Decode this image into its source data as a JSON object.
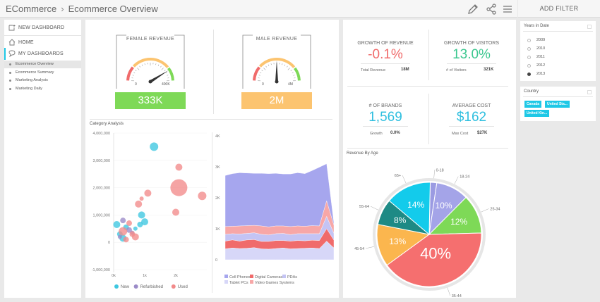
{
  "breadcrumb": {
    "root": "ECommerce",
    "separator": "›",
    "current": "Ecommerce Overview"
  },
  "toolbar": {
    "edit_icon": "pencil-icon",
    "share_icon": "share-icon",
    "menu_icon": "hamburger-menu-icon"
  },
  "filter_button": "ADD FILTER",
  "sidebar": {
    "new_dashboard": "NEW DASHBOARD",
    "home": "HOME",
    "my_dashboards": "MY DASHBOARDS",
    "dashboards": [
      "Ecommerce Overview",
      "Ecommerce Summary",
      "Marketing Analysis",
      "Marketing Daily"
    ]
  },
  "female_revenue": {
    "title": "FEMALE REVENUE",
    "min": "0",
    "max": "400K",
    "value_label": "333K",
    "value": 333,
    "scale_max": 400,
    "color": "#7ed957"
  },
  "male_revenue": {
    "title": "MALE REVENUE",
    "min": "0",
    "max": "4M",
    "value_label": "2M",
    "value": 2,
    "scale_max": 4,
    "color": "#fcc470"
  },
  "growth_revenue": {
    "title": "GROWTH OF REVENUE",
    "value": "-0.1%",
    "sub_label": "Total Revenue",
    "sub_value": "18M",
    "color": "#f06b6b"
  },
  "growth_visitors": {
    "title": "GROWTH OF VISITORS",
    "value": "13.0%",
    "sub_label": "# of Visitors",
    "sub_value": "321K",
    "color": "#3cc78f"
  },
  "brands": {
    "title": "# OF BRANDS",
    "value": "1,569",
    "sub_label": "Growth",
    "sub_value": "0.0%",
    "color": "#2fbfdf"
  },
  "avg_cost": {
    "title": "AVERAGE COST",
    "value": "$162",
    "sub_label": "Max Cost",
    "sub_value": "$27K",
    "color": "#2fbfdf"
  },
  "category_title": "Category Analysis",
  "bubble": {
    "y_ticks": [
      "4,000,000",
      "3,000,000",
      "2,000,000",
      "1,000,000",
      "0",
      "-1,000,000"
    ],
    "x_ticks": [
      "0k",
      "1k",
      "2k"
    ],
    "legend": [
      {
        "name": "New",
        "color": "#3ec7e0"
      },
      {
        "name": "Refurbished",
        "color": "#9b8bc8"
      },
      {
        "name": "Used",
        "color": "#f28a8a"
      }
    ],
    "points": [
      {
        "s": 0,
        "x": 1300,
        "y": 3500000,
        "r": 6
      },
      {
        "s": 0,
        "x": 100,
        "y": 650000,
        "r": 5
      },
      {
        "s": 0,
        "x": 900,
        "y": 1000000,
        "r": 5
      },
      {
        "s": 0,
        "x": 1000,
        "y": 750000,
        "r": 5
      },
      {
        "s": 0,
        "x": 850,
        "y": 650000,
        "r": 4
      },
      {
        "s": 0,
        "x": 400,
        "y": 550000,
        "r": 4
      },
      {
        "s": 0,
        "x": 200,
        "y": 300000,
        "r": 4
      },
      {
        "s": 0,
        "x": 300,
        "y": 150000,
        "r": 5
      },
      {
        "s": 0,
        "x": 700,
        "y": 500000,
        "r": 3
      },
      {
        "s": 1,
        "x": 300,
        "y": 800000,
        "r": 4
      },
      {
        "s": 1,
        "x": 500,
        "y": 450000,
        "r": 4
      },
      {
        "s": 1,
        "x": 200,
        "y": 200000,
        "r": 3
      },
      {
        "s": 1,
        "x": 600,
        "y": 350000,
        "r": 3
      },
      {
        "s": 2,
        "x": 2100,
        "y": 2000000,
        "r": 12
      },
      {
        "s": 2,
        "x": 2100,
        "y": 2750000,
        "r": 5
      },
      {
        "s": 2,
        "x": 1100,
        "y": 1800000,
        "r": 5
      },
      {
        "s": 2,
        "x": 800,
        "y": 1400000,
        "r": 5
      },
      {
        "s": 2,
        "x": 900,
        "y": 1600000,
        "r": 3
      },
      {
        "s": 2,
        "x": 2850,
        "y": 1700000,
        "r": 6
      },
      {
        "s": 2,
        "x": 2000,
        "y": 1100000,
        "r": 5
      },
      {
        "s": 2,
        "x": 500,
        "y": 700000,
        "r": 4
      },
      {
        "s": 2,
        "x": 300,
        "y": 400000,
        "r": 6
      },
      {
        "s": 2,
        "x": 600,
        "y": 300000,
        "r": 4
      },
      {
        "s": 2,
        "x": 700,
        "y": 200000,
        "r": 5
      },
      {
        "s": 2,
        "x": 400,
        "y": 100000,
        "r": 4
      }
    ]
  },
  "stream": {
    "y_ticks": [
      "4K",
      "3K",
      "2K",
      "1K",
      "0"
    ],
    "legend": [
      {
        "name": "Cell Phones",
        "color": "#a6a6ee"
      },
      {
        "name": "Digital Cameras",
        "color": "#f06b6b"
      },
      {
        "name": "PDAs",
        "color": "#c4c4f4"
      },
      {
        "name": "Tablet PCs",
        "color": "#d7d7f8"
      },
      {
        "name": "Video Games Systems",
        "color": "#f7a7a7"
      }
    ],
    "series": [
      [
        350,
        380,
        360,
        370,
        390,
        350,
        340,
        360,
        380,
        350,
        360,
        370,
        380,
        360,
        600,
        380
      ],
      [
        250,
        260,
        240,
        270,
        260,
        240,
        250,
        260,
        240,
        250,
        260,
        240,
        250,
        260,
        400,
        250
      ],
      [
        220,
        200,
        230,
        210,
        220,
        230,
        210,
        220,
        230,
        210,
        220,
        230,
        210,
        220,
        400,
        220
      ],
      [
        250,
        240,
        260,
        250,
        240,
        270,
        260,
        250,
        240,
        260,
        250,
        240,
        260,
        250,
        500,
        260
      ],
      [
        1650,
        1700,
        1720,
        1700,
        1680,
        1700,
        1720,
        1700,
        1680,
        1700,
        1720,
        1700,
        1780,
        1900,
        1200,
        80
      ]
    ]
  },
  "years": {
    "title": "Years in Date",
    "options": [
      "2009",
      "2010",
      "2011",
      "2012",
      "2013"
    ],
    "selected": "2013"
  },
  "country": {
    "title": "Country",
    "chips": [
      "Canada",
      "United Sta...",
      "United Kin..."
    ]
  },
  "pie": {
    "title": "Revenue By Age",
    "slices": [
      {
        "label": "0-18",
        "value": 2,
        "color": "#9b9be2",
        "pct": ""
      },
      {
        "label": "18-24",
        "value": 10,
        "color": "#a4a4e8",
        "pct": "10%"
      },
      {
        "label": "25-34",
        "value": 12,
        "color": "#7ed957",
        "pct": "12%"
      },
      {
        "label": "35-44",
        "value": 40,
        "color": "#f56f6f",
        "pct": "40%"
      },
      {
        "label": "45-54",
        "value": 13,
        "color": "#fbb64e",
        "pct": "13%"
      },
      {
        "label": "55-64",
        "value": 8,
        "color": "#1e8a85",
        "pct": "8%"
      },
      {
        "label": "65+",
        "value": 14,
        "color": "#13cbeb",
        "pct": "14%"
      }
    ]
  }
}
